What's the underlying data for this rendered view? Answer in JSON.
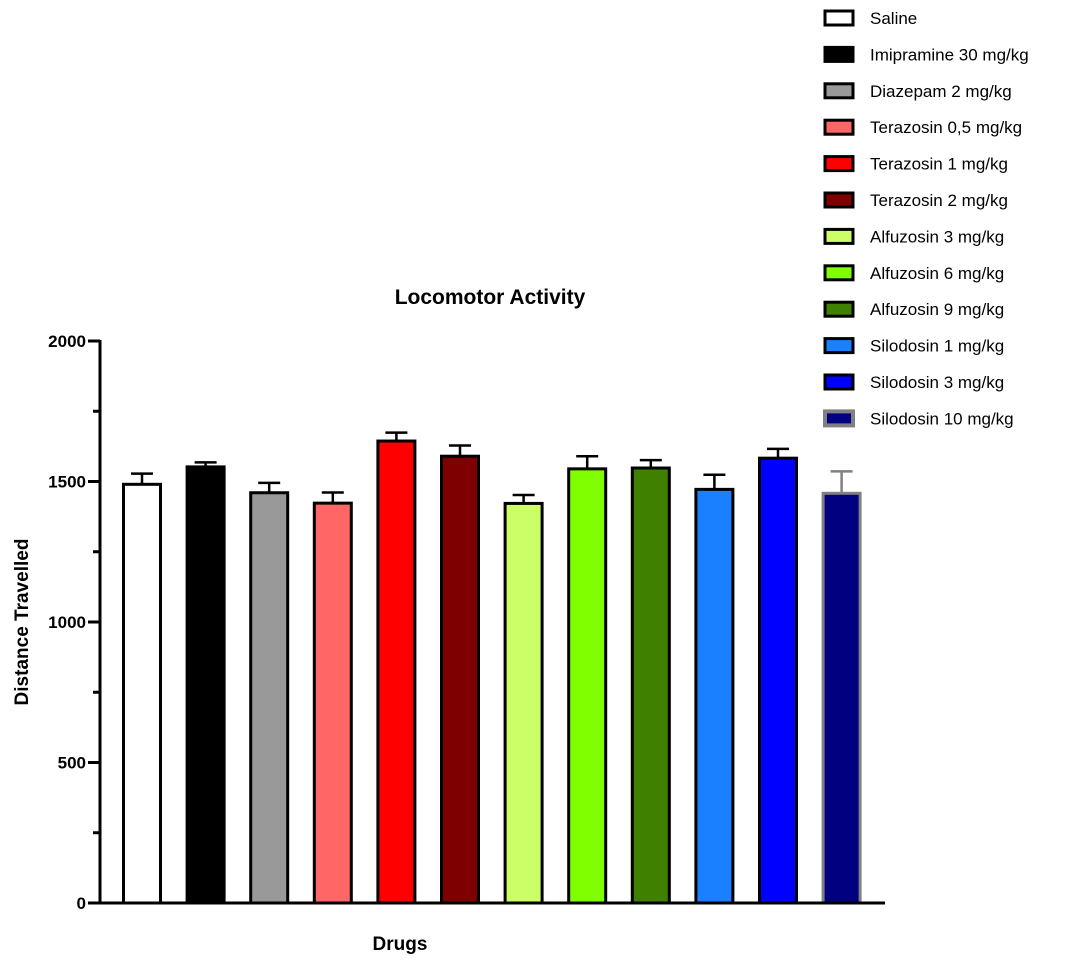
{
  "chart_data": {
    "type": "bar",
    "title": "Locomotor Activity",
    "xlabel": "Drugs",
    "ylabel": "Distance Travelled",
    "ylim": [
      0,
      2000
    ],
    "yticks": [
      0,
      500,
      1000,
      1500,
      2000
    ],
    "y_minor_ticks": [
      250,
      750,
      1250,
      1750
    ],
    "grid": false,
    "legend_position": "top-right",
    "categories": [
      "Saline",
      "Imipramine 30 mg/kg",
      "Diazepam 2 mg/kg",
      "Terazosin 0,5 mg/kg",
      "Terazosin 1 mg/kg",
      "Terazosin 2 mg/kg",
      "Alfuzosin 3 mg/kg",
      "Alfuzosin 6 mg/kg",
      "Alfuzosin 9 mg/kg",
      "Silodosin 1 mg/kg",
      "Silodosin 3 mg/kg",
      "Silodosin 10 mg/kg"
    ],
    "values": [
      1490,
      1552,
      1460,
      1423,
      1644,
      1590,
      1422,
      1545,
      1548,
      1472,
      1583,
      1458
    ],
    "errors": [
      38,
      16,
      35,
      38,
      30,
      38,
      30,
      45,
      28,
      52,
      33,
      78
    ],
    "colors": [
      "#ffffff",
      "#000000",
      "#999999",
      "#ff6666",
      "#ff0000",
      "#7f0000",
      "#ccff66",
      "#80ff00",
      "#408000",
      "#1a80ff",
      "#0000ff",
      "#000080"
    ],
    "edge_colors": [
      "#000000",
      "#000000",
      "#000000",
      "#000000",
      "#000000",
      "#000000",
      "#000000",
      "#000000",
      "#000000",
      "#000000",
      "#000000",
      "#808080"
    ]
  }
}
